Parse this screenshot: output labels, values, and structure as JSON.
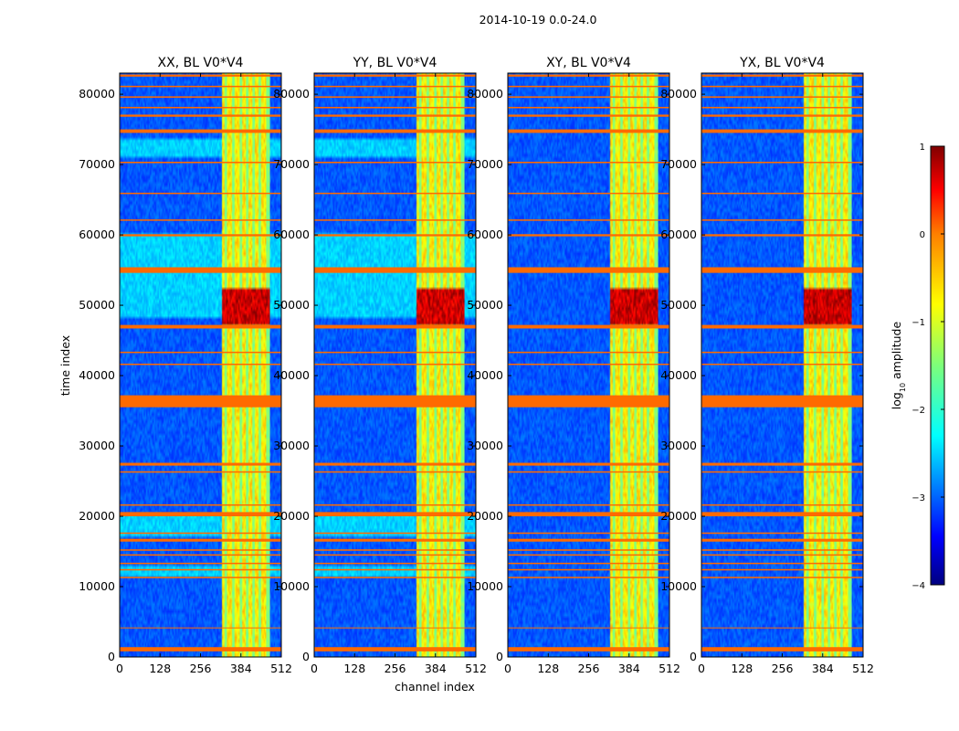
{
  "figure": {
    "suptitle": "2014-10-19 0.0-24.0",
    "xlabel": "channel index",
    "ylabel": "time index"
  },
  "chart_data": {
    "type": "heatmap",
    "colormap": "jet",
    "x_range": [
      0,
      512
    ],
    "y_range": [
      0,
      83000
    ],
    "x_ticks": [
      0,
      128,
      256,
      384,
      512
    ],
    "y_ticks": [
      0,
      10000,
      20000,
      30000,
      40000,
      50000,
      60000,
      70000,
      80000
    ],
    "colorbar": {
      "label": "log10 amplitude",
      "label_base": "log",
      "label_sub": "10",
      "label_rest": " amplitude",
      "range": [
        -4,
        1
      ],
      "ticks": [
        1,
        0,
        -1,
        -2,
        -3,
        -4
      ],
      "tick_labels": [
        "1",
        "0",
        "−1",
        "−2",
        "−3",
        "−4"
      ]
    },
    "flagged_color": "#ff6a00",
    "panels": [
      {
        "title": "XX, BL V0*V4",
        "pol": "XX",
        "cross": false
      },
      {
        "title": "YY, BL V0*V4",
        "pol": "YY",
        "cross": false
      },
      {
        "title": "XY, BL V0*V4",
        "pol": "XY",
        "cross": true
      },
      {
        "title": "YX, BL V0*V4",
        "pol": "YX",
        "cross": true
      }
    ],
    "signal_channel_range": [
      325,
      475
    ],
    "rfi_channels": [
      335,
      360,
      383,
      405,
      425,
      445,
      470
    ],
    "bright_event_time_range": [
      47000,
      52500
    ],
    "flagged_time_bands": [
      [
        35500,
        37200
      ],
      [
        800,
        1400
      ],
      [
        26200,
        26400
      ],
      [
        27200,
        27600
      ],
      [
        20000,
        20600
      ],
      [
        16400,
        16800
      ],
      [
        17500,
        17700
      ],
      [
        21500,
        21700
      ],
      [
        46700,
        47200
      ],
      [
        54600,
        55400
      ],
      [
        59800,
        60100
      ],
      [
        62000,
        62200
      ],
      [
        65800,
        66000
      ],
      [
        70200,
        70400
      ],
      [
        74500,
        75000
      ],
      [
        76800,
        77100
      ],
      [
        78000,
        78200
      ],
      [
        79500,
        79700
      ],
      [
        81000,
        81200
      ],
      [
        82500,
        82800
      ],
      [
        12300,
        12500
      ],
      [
        13200,
        13400
      ],
      [
        14400,
        14600
      ],
      [
        15100,
        15300
      ],
      [
        11200,
        11400
      ],
      [
        4100,
        4200
      ],
      [
        43200,
        43400
      ],
      [
        41500,
        41700
      ]
    ]
  }
}
